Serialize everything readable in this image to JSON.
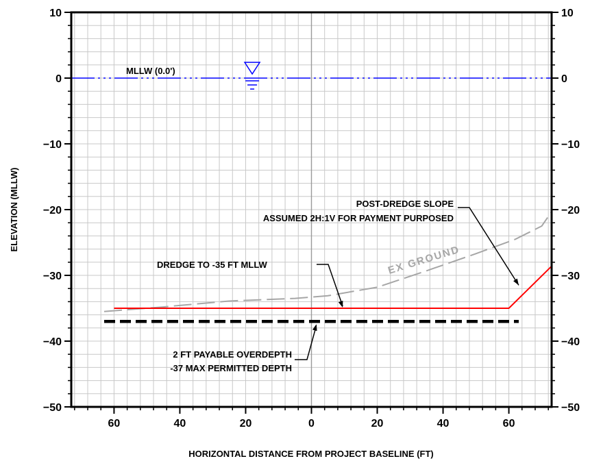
{
  "chart_data": {
    "type": "line",
    "xlabel": "HORIZONTAL DISTANCE FROM PROJECT BASELINE (FT)",
    "ylabel": "ELEVATION (MLLW)",
    "xlim": [
      -73,
      73
    ],
    "ylim": [
      -50,
      10
    ],
    "x_ticks": [
      {
        "value": -60,
        "label": "60"
      },
      {
        "value": -40,
        "label": "40"
      },
      {
        "value": -20,
        "label": "20"
      },
      {
        "value": 0,
        "label": "0"
      },
      {
        "value": 20,
        "label": "20"
      },
      {
        "value": 40,
        "label": "40"
      },
      {
        "value": 60,
        "label": "60"
      }
    ],
    "y_ticks": [
      {
        "value": 10,
        "label": "10"
      },
      {
        "value": 0,
        "label": "0"
      },
      {
        "value": -10,
        "label": "−10"
      },
      {
        "value": -20,
        "label": "−20"
      },
      {
        "value": -30,
        "label": "−30"
      },
      {
        "value": -40,
        "label": "−40"
      },
      {
        "value": -50,
        "label": "−50"
      }
    ],
    "grid": true,
    "colors": {
      "axis": "#000000",
      "grid": "#c8c8c8",
      "water": "#0000ff",
      "dredge": "#ff0000",
      "overdepth": "#000000",
      "ground": "#a6a6a6"
    },
    "series": [
      {
        "key": "mllw",
        "x": [
          -73,
          73
        ],
        "y": [
          0,
          0
        ]
      },
      {
        "key": "dredge",
        "x": [
          -60,
          60,
          73
        ],
        "y": [
          -35,
          -35,
          -28.6
        ]
      },
      {
        "key": "overdepth",
        "x": [
          -63,
          63
        ],
        "y": [
          -37,
          -37
        ]
      },
      {
        "key": "ground",
        "x": [
          -63,
          -45,
          -25,
          -5,
          5,
          20,
          35,
          50,
          62,
          70,
          73
        ],
        "y": [
          -35.5,
          -34.8,
          -33.9,
          -33.5,
          -33.1,
          -31.8,
          -29.3,
          -26.7,
          -24.5,
          -22.5,
          -20.3
        ]
      }
    ],
    "annotations": {
      "mllw": "MLLW (0.0')",
      "ex_ground": "EX GROUND",
      "dredge": "DREDGE TO -35 FT MLLW",
      "slope_line1": "POST-DREDGE SLOPE",
      "slope_line2": "ASSUMED 2H:1V FOR PAYMENT PURPOSED",
      "overdepth_line1": "2 FT PAYABLE OVERDEPTH",
      "overdepth_line2": "-37 MAX PERMITTED DEPTH"
    }
  }
}
